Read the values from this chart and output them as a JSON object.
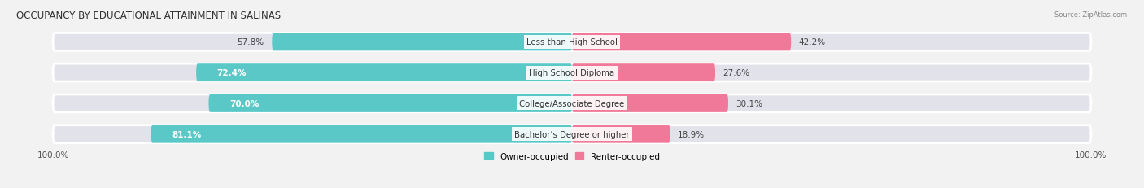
{
  "title": "OCCUPANCY BY EDUCATIONAL ATTAINMENT IN SALINAS",
  "source": "Source: ZipAtlas.com",
  "categories": [
    "Less than High School",
    "High School Diploma",
    "College/Associate Degree",
    "Bachelor’s Degree or higher"
  ],
  "owner_pct": [
    57.8,
    72.4,
    70.0,
    81.1
  ],
  "renter_pct": [
    42.2,
    27.6,
    30.1,
    18.9
  ],
  "owner_color": "#5BC8C8",
  "renter_color": "#F07898",
  "bg_color": "#F2F2F2",
  "bar_bg_color": "#E2E2EA",
  "title_fontsize": 8.5,
  "label_fontsize": 7.5,
  "bar_height": 0.58,
  "left_label": "100.0%",
  "right_label": "100.0%",
  "owner_label_threshold": 60
}
